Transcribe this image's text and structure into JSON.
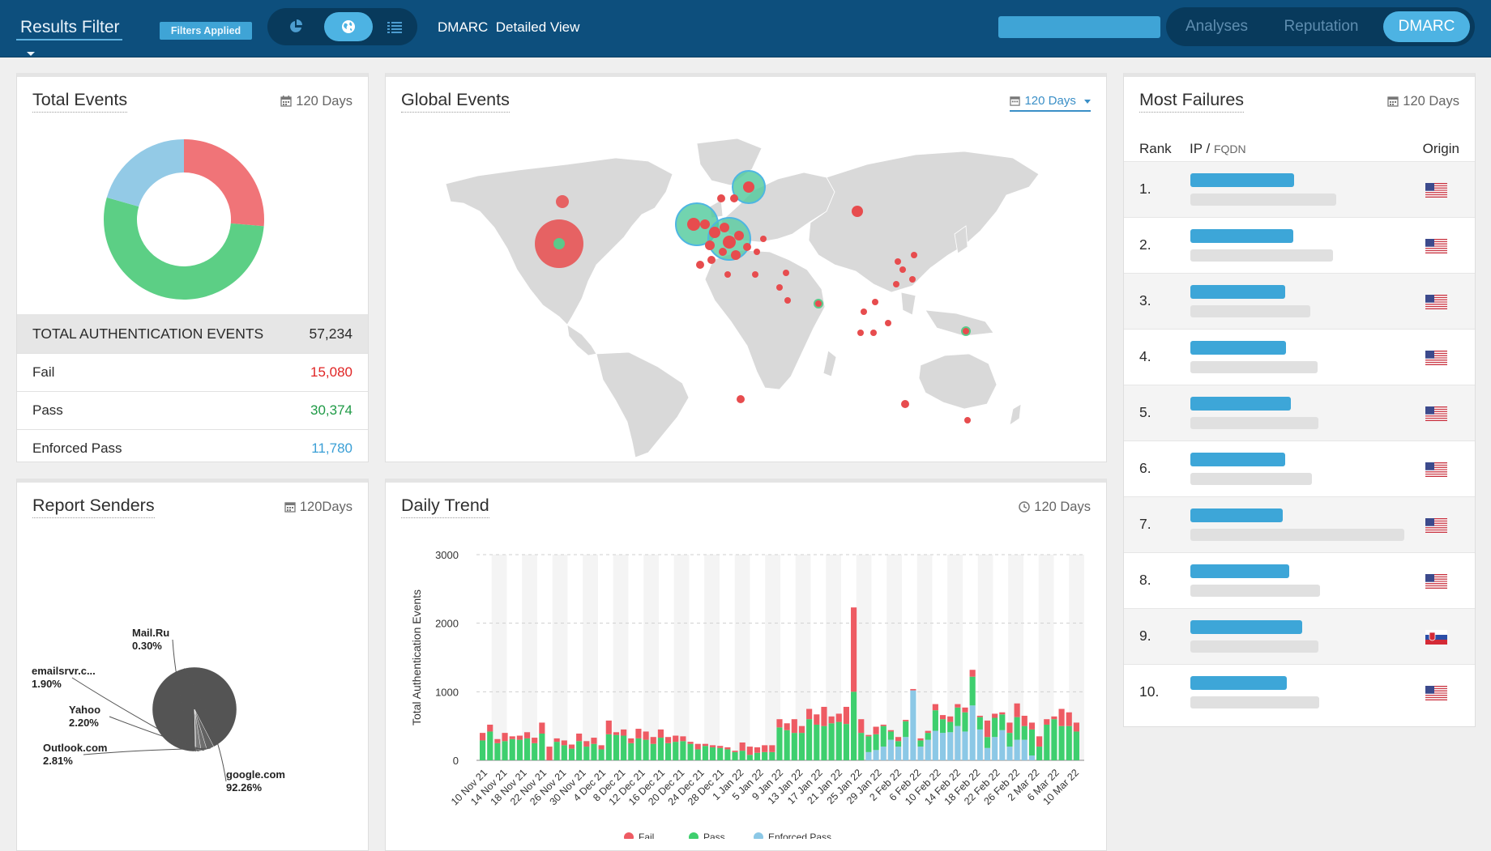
{
  "topbar": {
    "results_filter_label": "Results Filter",
    "filters_badge": "Filters Applied",
    "view_toggle_icons": [
      "pie-chart-icon",
      "globe-icon",
      "list-icon"
    ],
    "view_toggle_active": "globe-icon",
    "page_title": "DMARC  Detailed View",
    "search_value": "",
    "nav_tabs": [
      {
        "label": "Analyses",
        "active": false
      },
      {
        "label": "Reputation",
        "active": false
      },
      {
        "label": "DMARC",
        "active": true
      }
    ]
  },
  "total_events": {
    "title": "Total Events",
    "period": "120 Days",
    "summary_label": "TOTAL AUTHENTICATION EVENTS",
    "summary_value": "57,234",
    "rows": [
      {
        "label": "Fail",
        "value": "15,080",
        "color": "#e02424"
      },
      {
        "label": "Pass",
        "value": "30,374",
        "color": "#1f9a46"
      },
      {
        "label": "Enforced Pass",
        "value": "11,780",
        "color": "#3a9fd6"
      }
    ],
    "donut_colors": {
      "fail": "#f07478",
      "pass": "#5ccf85",
      "enforced": "#93cae6"
    }
  },
  "global_events": {
    "title": "Global Events",
    "period": "120 Days"
  },
  "most_failures": {
    "title": "Most Failures",
    "period": "120 Days",
    "col_rank": "Rank",
    "col_ip": "IP",
    "col_sep": " / ",
    "col_fqdn": "FQDN",
    "col_origin": "Origin",
    "rows": [
      {
        "rank": "1.",
        "origin": "us-flag-icon"
      },
      {
        "rank": "2.",
        "origin": "us-flag-icon"
      },
      {
        "rank": "3.",
        "origin": "us-flag-icon"
      },
      {
        "rank": "4.",
        "origin": "us-flag-icon"
      },
      {
        "rank": "5.",
        "origin": "us-flag-icon"
      },
      {
        "rank": "6.",
        "origin": "us-flag-icon"
      },
      {
        "rank": "7.",
        "origin": "us-flag-icon"
      },
      {
        "rank": "8.",
        "origin": "us-flag-icon"
      },
      {
        "rank": "9.",
        "origin": "sk-flag-icon"
      },
      {
        "rank": "10.",
        "origin": "us-flag-icon"
      }
    ]
  },
  "report_senders": {
    "title": "Report Senders",
    "period": "120Days"
  },
  "daily_trend": {
    "title": "Daily Trend",
    "period": "120 Days"
  },
  "chart_data": [
    {
      "type": "pie",
      "title": "Total Events",
      "labels": [
        "Fail",
        "Pass",
        "Enforced Pass"
      ],
      "values": [
        15080,
        30374,
        11780
      ],
      "colors": [
        "#f07478",
        "#5ccf85",
        "#93cae6"
      ]
    },
    {
      "type": "pie",
      "title": "Report Senders",
      "labels": [
        "google.com",
        "Outlook.com",
        "Yahoo",
        "emailsrvr.c...",
        "Mail.Ru"
      ],
      "value_labels": [
        "92.26%",
        "2.81%",
        "2.20%",
        "1.90%",
        "0.30%"
      ],
      "values": [
        92.26,
        2.81,
        2.2,
        1.9,
        0.3
      ],
      "colors": [
        "#545454",
        "#626262",
        "#6e6e6e",
        "#7a7a7a",
        "#888888"
      ]
    },
    {
      "type": "bar",
      "stacked": true,
      "title": "Daily Trend",
      "ylabel": "Total Authentication Events",
      "ylim": [
        0,
        3000
      ],
      "yticks": [
        0,
        1000,
        2000,
        3000
      ],
      "xticks": [
        "10 Nov 21",
        "14 Nov 21",
        "18 Nov 21",
        "22 Nov 21",
        "26 Nov 21",
        "30 Nov 21",
        "4 Dec 21",
        "8 Dec 21",
        "12 Dec 21",
        "16 Dec 21",
        "20 Dec 21",
        "24 Dec 21",
        "28 Dec 21",
        "1 Jan 22",
        "5 Jan 22",
        "9 Jan 22",
        "13 Jan 22",
        "17 Jan 22",
        "21 Jan 22",
        "25 Jan 22",
        "29 Jan 22",
        "2 Feb 22",
        "6 Feb 22",
        "10 Feb 22",
        "14 Feb 22",
        "18 Feb 22",
        "22 Feb 22",
        "26 Feb 22",
        "2 Mar 22",
        "6 Mar 22",
        "10 Mar 22"
      ],
      "legend": [
        "Fail",
        "Pass",
        "Enforced Pass"
      ],
      "colors": {
        "Fail": "#ee5b63",
        "Pass": "#3ecf6e",
        "Enforced Pass": "#8cc8e6"
      },
      "series": [
        {
          "name": "Fail",
          "values": [
            110,
            100,
            60,
            120,
            40,
            60,
            90,
            80,
            160,
            200,
            50,
            70,
            60,
            110,
            80,
            90,
            60,
            200,
            40,
            90,
            70,
            140,
            120,
            100,
            120,
            90,
            90,
            70,
            30,
            80,
            30,
            30,
            30,
            30,
            20,
            120,
            120,
            80,
            100,
            100,
            120,
            100,
            200,
            100,
            150,
            150,
            280,
            100,
            120,
            250,
            1230,
            200,
            20,
            110,
            20,
            20,
            60,
            20,
            20,
            30,
            30,
            90,
            60,
            80,
            50,
            70,
            100,
            20,
            240,
            60,
            30,
            150,
            200,
            150,
            100,
            150,
            80,
            40,
            250,
            200,
            130
          ]
        },
        {
          "name": "Pass",
          "values": [
            290,
            420,
            250,
            280,
            310,
            300,
            320,
            250,
            390,
            0,
            270,
            220,
            170,
            280,
            200,
            240,
            160,
            380,
            370,
            360,
            250,
            320,
            300,
            240,
            330,
            250,
            270,
            280,
            240,
            160,
            210,
            190,
            180,
            160,
            120,
            140,
            80,
            110,
            120,
            120,
            480,
            440,
            400,
            400,
            600,
            520,
            500,
            540,
            560,
            530,
            1000,
            400,
            230,
            230,
            300,
            120,
            80,
            230,
            0,
            90,
            100,
            300,
            200,
            150,
            270,
            280,
            420,
            180,
            160,
            280,
            230,
            200,
            330,
            200,
            380,
            200,
            520,
            600,
            500,
            500,
            420
          ]
        },
        {
          "name": "Enforced Pass",
          "values": [
            0,
            0,
            0,
            0,
            0,
            0,
            0,
            0,
            0,
            0,
            0,
            0,
            0,
            0,
            0,
            0,
            0,
            0,
            0,
            0,
            0,
            0,
            0,
            0,
            0,
            0,
            0,
            0,
            0,
            0,
            0,
            0,
            0,
            0,
            0,
            0,
            0,
            0,
            0,
            0,
            0,
            0,
            0,
            0,
            0,
            0,
            0,
            0,
            0,
            0,
            0,
            0,
            120,
            150,
            200,
            300,
            200,
            340,
            1020,
            200,
            300,
            430,
            400,
            410,
            500,
            420,
            800,
            450,
            180,
            340,
            440,
            200,
            300,
            300,
            70,
            0,
            0,
            0,
            0,
            0,
            0
          ]
        }
      ]
    }
  ]
}
